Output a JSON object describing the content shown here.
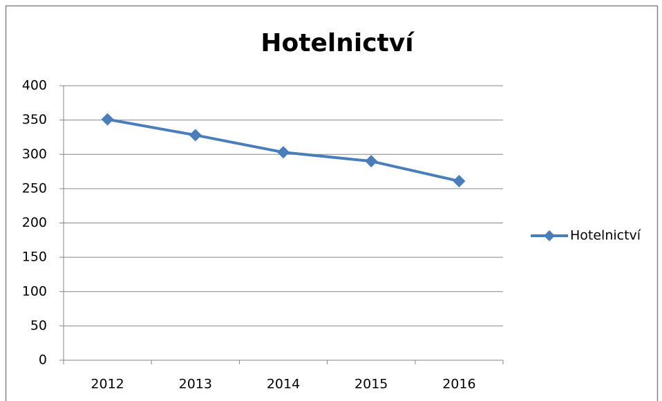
{
  "chart_data": {
    "type": "line",
    "title": "Hotelnictví",
    "categories": [
      "2012",
      "2013",
      "2014",
      "2015",
      "2016"
    ],
    "series": [
      {
        "name": "Hotelnictví",
        "color": "#4a7ebb",
        "values": [
          351,
          328,
          303,
          290,
          261
        ]
      }
    ],
    "ylim": [
      0,
      400
    ],
    "yticks": [
      0,
      50,
      100,
      150,
      200,
      250,
      300,
      350,
      400
    ],
    "grid": true,
    "legend": "right"
  }
}
